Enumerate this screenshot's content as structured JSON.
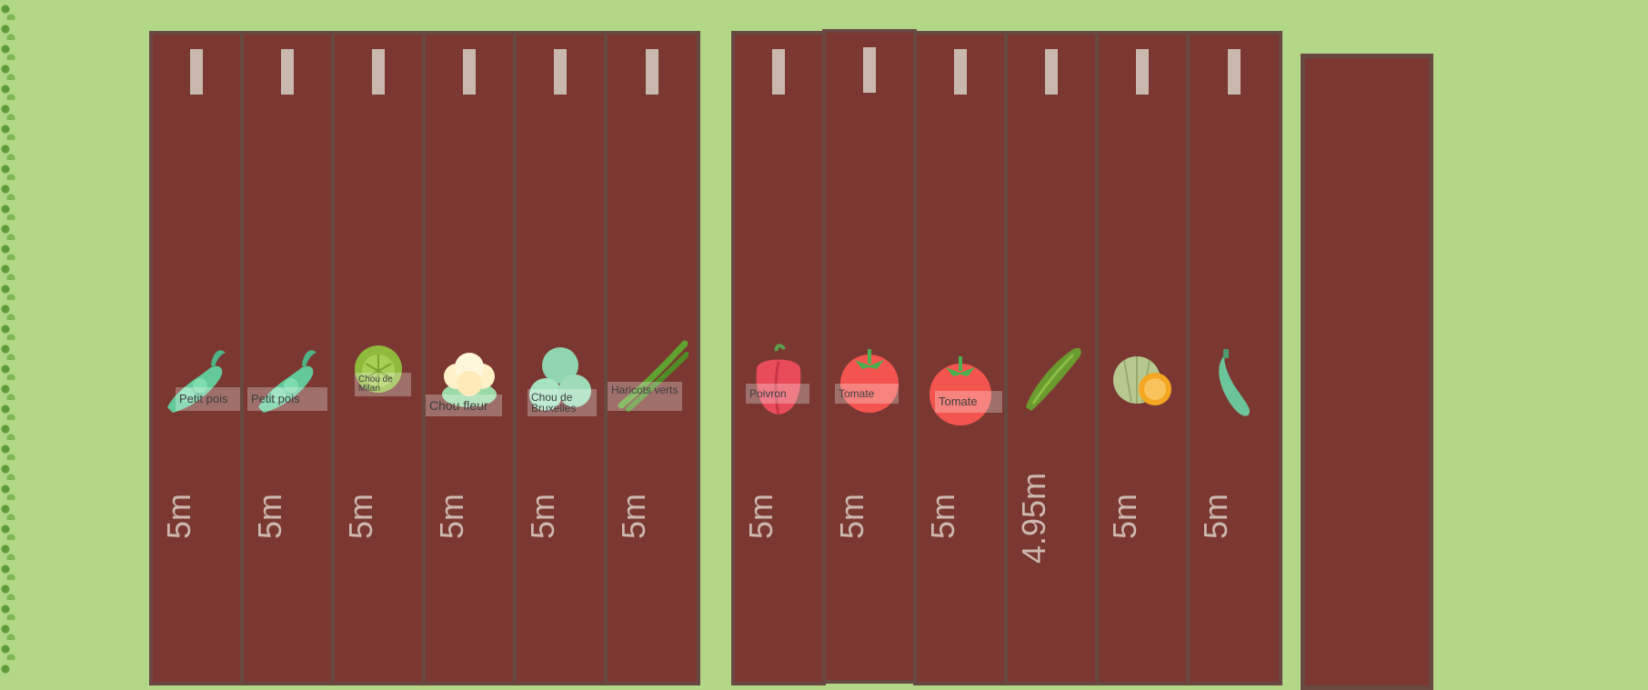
{
  "rows": [
    {
      "label": "Petit pois",
      "length": "5m",
      "icon": "pea-pod-icon"
    },
    {
      "label": "Petit pois",
      "length": "5m",
      "icon": "pea-pod-icon"
    },
    {
      "label": "Chou de Milan",
      "length": "5m",
      "icon": "savoy-cabbage-icon"
    },
    {
      "label": "Chou fleur",
      "length": "5m",
      "icon": "cauliflower-icon"
    },
    {
      "label": "Chou de Bruxelles",
      "length": "5m",
      "icon": "brussels-sprouts-icon"
    },
    {
      "label": "Haricots verts",
      "length": "5m",
      "icon": "green-beans-icon"
    },
    {
      "label": "Poivron",
      "length": "5m",
      "icon": "bell-pepper-icon"
    },
    {
      "label": "Tomate",
      "length": "5m",
      "icon": "tomato-icon"
    },
    {
      "label": "Tomate",
      "length": "5m",
      "icon": "tomato-icon"
    },
    {
      "label": "",
      "length": "4.95m",
      "icon": "cucumber-icon"
    },
    {
      "label": "",
      "length": "5m",
      "icon": "melon-icon"
    },
    {
      "label": "",
      "length": "5m",
      "icon": "zucchini-icon"
    }
  ],
  "colors": {
    "grass": "#b2d786",
    "soil": "#7b3832",
    "border": "#6a4842",
    "stake": "#c9b8ae"
  }
}
